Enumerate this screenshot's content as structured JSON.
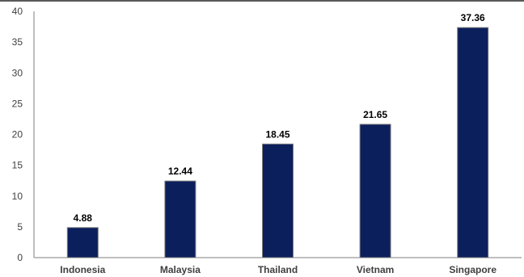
{
  "chart_data": {
    "type": "bar",
    "title": "",
    "xlabel": "",
    "ylabel": "",
    "categories": [
      "Indonesia",
      "Malaysia",
      "Thailand",
      "Vietnam",
      "Singapore"
    ],
    "values": [
      4.88,
      12.44,
      18.45,
      21.65,
      37.36
    ],
    "data_labels": [
      "4.88",
      "12.44",
      "18.45",
      "21.65",
      "37.36"
    ],
    "ylim": [
      0,
      40
    ],
    "yticks": [
      0,
      5,
      10,
      15,
      20,
      25,
      30,
      35,
      40
    ],
    "grid": false,
    "legend": "none",
    "colors": {
      "bar_fill": "#0b1f5c",
      "bar_outline": "#7f7f7f",
      "axis": "#7f7f7f",
      "top_border": "#595959"
    }
  }
}
